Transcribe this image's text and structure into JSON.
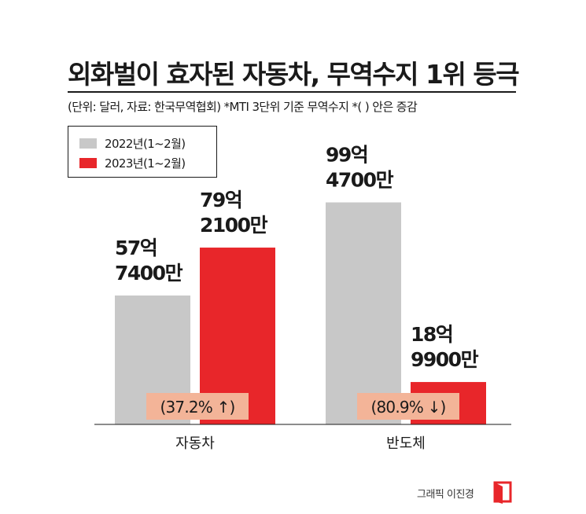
{
  "title": "외화벌이 효자된 자동차, 무역수지 1위 등극",
  "subtitle": "(단위: 달러, 자료: 한국무역협회) *MTI 3단위 기준 무역수지 *( ) 안은 증감",
  "credit": "그래픽 이진경",
  "colors": {
    "series_2022": "#c8c8c8",
    "series_2023": "#e8262a",
    "change_box": "#f3b498"
  },
  "chart_data": {
    "type": "bar",
    "categories": [
      "자동차",
      "반도체"
    ],
    "series": [
      {
        "name": "2022년(1~2월)",
        "values": [
          57.74,
          99.47
        ],
        "labels": [
          "57억\n7400만",
          "99억\n4700만"
        ]
      },
      {
        "name": "2023년(1~2월)",
        "values": [
          79.21,
          18.99
        ],
        "labels": [
          "79억\n2100만",
          "18억\n9900만"
        ]
      }
    ],
    "changes": [
      "(37.2% ↑)",
      "(80.9% ↓)"
    ],
    "unit": "억 달러",
    "ylim": [
      0,
      100
    ],
    "legend_position": "top-left",
    "grid": false
  }
}
